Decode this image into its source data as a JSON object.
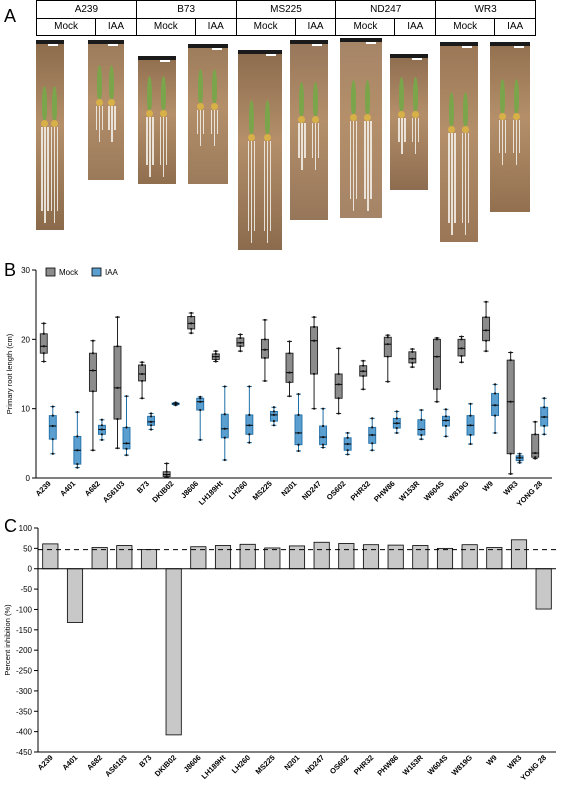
{
  "panels": {
    "a": "A",
    "b": "B",
    "c": "C"
  },
  "panel_a": {
    "lines": [
      "A239",
      "B73",
      "MS225",
      "ND247",
      "WR3"
    ],
    "treatments": [
      "Mock",
      "IAA"
    ]
  },
  "chart_data": [
    {
      "type": "box",
      "ylabel": "Primary root length (cm)",
      "ylim": [
        0,
        30
      ],
      "yticks": [
        0,
        10,
        20,
        30
      ],
      "legend": [
        "Mock",
        "IAA"
      ],
      "legend_placement": "top-left",
      "colors": {
        "Mock": "#8c8c8c",
        "IAA": "#5b9fd0"
      },
      "categories": [
        "A239",
        "A401",
        "A682",
        "AS6103",
        "B73",
        "DKIB02",
        "J8606",
        "LH189Ht",
        "LH260",
        "MS225",
        "N201",
        "ND247",
        "OS602",
        "PHR32",
        "PHW86",
        "W153R",
        "W604S",
        "W819G",
        "W9",
        "WR3",
        "YONG 28"
      ],
      "series": [
        {
          "name": "Mock",
          "boxes": [
            {
              "min": 16.8,
              "q1": 18.0,
              "median": 19.0,
              "q3": 20.8,
              "max": 22.3
            },
            null,
            {
              "min": 4.0,
              "q1": 12.5,
              "median": 15.5,
              "q3": 18.0,
              "max": 19.8
            },
            {
              "min": 4.3,
              "q1": 8.5,
              "median": 13.0,
              "q3": 19.0,
              "max": 23.2
            },
            {
              "min": 11.5,
              "q1": 14.0,
              "median": 15.0,
              "q3": 16.3,
              "max": 16.7
            },
            {
              "min": 0.1,
              "q1": 0.2,
              "median": 0.5,
              "q3": 0.9,
              "max": 2.1
            },
            {
              "min": 20.9,
              "q1": 21.5,
              "median": 22.3,
              "q3": 23.3,
              "max": 23.8
            },
            {
              "min": 16.8,
              "q1": 17.1,
              "median": 17.5,
              "q3": 17.9,
              "max": 18.3
            },
            {
              "min": 18.3,
              "q1": 19.0,
              "median": 19.5,
              "q3": 20.2,
              "max": 20.7
            },
            {
              "min": 14.0,
              "q1": 17.3,
              "median": 18.5,
              "q3": 20.0,
              "max": 22.8
            },
            {
              "min": 11.8,
              "q1": 13.8,
              "median": 15.2,
              "q3": 18.0,
              "max": 19.7
            },
            {
              "min": 10.0,
              "q1": 15.0,
              "median": 19.8,
              "q3": 21.8,
              "max": 23.2
            },
            {
              "min": 9.3,
              "q1": 11.5,
              "median": 13.5,
              "q3": 15.0,
              "max": 18.7
            },
            {
              "min": 12.8,
              "q1": 14.7,
              "median": 15.4,
              "q3": 16.2,
              "max": 16.9
            },
            {
              "min": 13.9,
              "q1": 17.5,
              "median": 19.3,
              "q3": 20.3,
              "max": 20.6
            },
            {
              "min": 16.0,
              "q1": 16.6,
              "median": 17.2,
              "q3": 18.2,
              "max": 18.6
            },
            {
              "min": 11.0,
              "q1": 12.8,
              "median": 17.5,
              "q3": 20.0,
              "max": 20.2
            },
            {
              "min": 16.7,
              "q1": 17.6,
              "median": 18.7,
              "q3": 20.0,
              "max": 20.4
            },
            {
              "min": 18.3,
              "q1": 19.8,
              "median": 21.3,
              "q3": 23.2,
              "max": 25.4
            },
            {
              "min": 0.6,
              "q1": 3.5,
              "median": 11.0,
              "q3": 17.0,
              "max": 18.1
            },
            {
              "min": 2.8,
              "q1": 3.0,
              "median": 3.6,
              "q3": 6.3,
              "max": 8.1
            }
          ]
        },
        {
          "name": "IAA",
          "boxes": [
            {
              "min": 3.5,
              "q1": 5.6,
              "median": 7.5,
              "q3": 9.0,
              "max": 10.3
            },
            {
              "min": 1.5,
              "q1": 2.0,
              "median": 4.0,
              "q3": 6.0,
              "max": 9.5
            },
            {
              "min": 5.5,
              "q1": 6.3,
              "median": 7.0,
              "q3": 7.6,
              "max": 8.4
            },
            {
              "min": 3.3,
              "q1": 4.2,
              "median": 5.0,
              "q3": 7.3,
              "max": 11.8
            },
            {
              "min": 7.0,
              "q1": 7.6,
              "median": 8.1,
              "q3": 8.9,
              "max": 9.3
            },
            {
              "min": 10.5,
              "q1": 10.6,
              "median": 10.7,
              "q3": 10.8,
              "max": 10.9
            },
            {
              "min": 5.5,
              "q1": 9.8,
              "median": 11.0,
              "q3": 11.5,
              "max": 11.7
            },
            {
              "min": 2.6,
              "q1": 5.8,
              "median": 7.1,
              "q3": 9.2,
              "max": 13.2
            },
            {
              "min": 5.1,
              "q1": 6.3,
              "median": 7.6,
              "q3": 9.1,
              "max": 13.2
            },
            {
              "min": 7.6,
              "q1": 8.2,
              "median": 9.1,
              "q3": 9.6,
              "max": 10.2
            },
            {
              "min": 3.9,
              "q1": 4.8,
              "median": 6.5,
              "q3": 9.1,
              "max": 12.1
            },
            {
              "min": 4.4,
              "q1": 4.8,
              "median": 5.9,
              "q3": 7.5,
              "max": 10.0
            },
            {
              "min": 3.4,
              "q1": 4.0,
              "median": 4.9,
              "q3": 5.8,
              "max": 6.5
            },
            {
              "min": 4.0,
              "q1": 5.0,
              "median": 6.2,
              "q3": 7.3,
              "max": 8.6
            },
            {
              "min": 6.5,
              "q1": 7.2,
              "median": 7.9,
              "q3": 8.6,
              "max": 9.6
            },
            {
              "min": 5.6,
              "q1": 6.2,
              "median": 7.0,
              "q3": 8.4,
              "max": 9.8
            },
            {
              "min": 6.0,
              "q1": 7.5,
              "median": 8.3,
              "q3": 8.9,
              "max": 9.9
            },
            {
              "min": 4.9,
              "q1": 6.2,
              "median": 7.6,
              "q3": 9.0,
              "max": 10.7
            },
            {
              "min": 6.5,
              "q1": 9.0,
              "median": 10.5,
              "q3": 12.2,
              "max": 13.5
            },
            {
              "min": 2.2,
              "q1": 2.5,
              "median": 2.9,
              "q3": 3.2,
              "max": 3.5
            },
            {
              "min": 6.3,
              "q1": 7.5,
              "median": 8.8,
              "q3": 10.2,
              "max": 11.5
            }
          ]
        }
      ]
    },
    {
      "type": "bar",
      "ylabel": "Percent inhibition (%)",
      "ylim": [
        -450,
        100
      ],
      "yticks": [
        100,
        50,
        0,
        -50,
        -100,
        -150,
        -200,
        -250,
        -300,
        -350,
        -400,
        -450
      ],
      "reference_line": 47,
      "bar_color": "#c8c8c8",
      "categories": [
        "A239",
        "A401",
        "A682",
        "AS6103",
        "B73",
        "DKIB02",
        "J8606",
        "LH189Ht",
        "LH260",
        "MS225",
        "N201",
        "ND247",
        "OS602",
        "PHR32",
        "PHW86",
        "W153R",
        "W604S",
        "W819G",
        "W9",
        "WR3",
        "YONG 28"
      ],
      "values": [
        61,
        -132,
        52,
        57,
        47,
        -408,
        54,
        57,
        60,
        51,
        56,
        65,
        62,
        59,
        58,
        57,
        50,
        59,
        52,
        71,
        -99
      ]
    }
  ]
}
